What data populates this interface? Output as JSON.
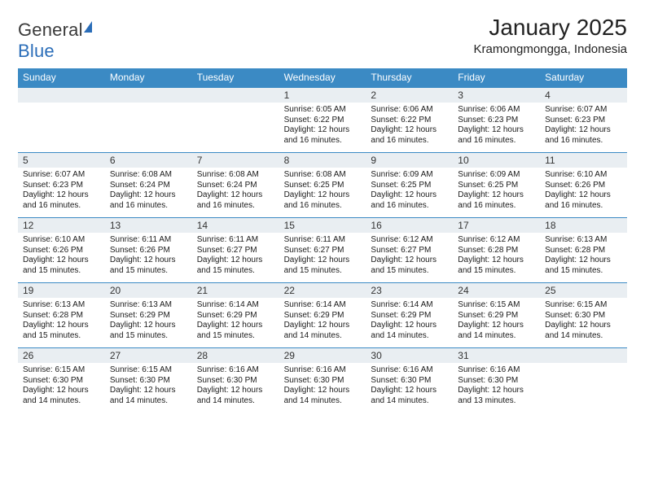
{
  "logo": {
    "text1": "General",
    "text2": "Blue"
  },
  "header": {
    "title": "January 2025",
    "location": "Kramongmongga, Indonesia"
  },
  "styling": {
    "header_bg": "#3b8ac4",
    "header_text": "#ffffff",
    "daynum_bg": "#e9eef2",
    "border_color": "#3b8ac4",
    "body_bg": "#ffffff",
    "body_text": "#1a1a1a",
    "logo_accent": "#2a6db8",
    "month_title_fontsize": 28,
    "weekday_fontsize": 12,
    "daynum_fontsize": 12,
    "detail_fontsize": 10
  },
  "weekdays": [
    "Sunday",
    "Monday",
    "Tuesday",
    "Wednesday",
    "Thursday",
    "Friday",
    "Saturday"
  ],
  "weeks": [
    [
      null,
      null,
      null,
      {
        "num": "1",
        "sunrise": "6:05 AM",
        "sunset": "6:22 PM",
        "daylight": "12 hours and 16 minutes."
      },
      {
        "num": "2",
        "sunrise": "6:06 AM",
        "sunset": "6:22 PM",
        "daylight": "12 hours and 16 minutes."
      },
      {
        "num": "3",
        "sunrise": "6:06 AM",
        "sunset": "6:23 PM",
        "daylight": "12 hours and 16 minutes."
      },
      {
        "num": "4",
        "sunrise": "6:07 AM",
        "sunset": "6:23 PM",
        "daylight": "12 hours and 16 minutes."
      }
    ],
    [
      {
        "num": "5",
        "sunrise": "6:07 AM",
        "sunset": "6:23 PM",
        "daylight": "12 hours and 16 minutes."
      },
      {
        "num": "6",
        "sunrise": "6:08 AM",
        "sunset": "6:24 PM",
        "daylight": "12 hours and 16 minutes."
      },
      {
        "num": "7",
        "sunrise": "6:08 AM",
        "sunset": "6:24 PM",
        "daylight": "12 hours and 16 minutes."
      },
      {
        "num": "8",
        "sunrise": "6:08 AM",
        "sunset": "6:25 PM",
        "daylight": "12 hours and 16 minutes."
      },
      {
        "num": "9",
        "sunrise": "6:09 AM",
        "sunset": "6:25 PM",
        "daylight": "12 hours and 16 minutes."
      },
      {
        "num": "10",
        "sunrise": "6:09 AM",
        "sunset": "6:25 PM",
        "daylight": "12 hours and 16 minutes."
      },
      {
        "num": "11",
        "sunrise": "6:10 AM",
        "sunset": "6:26 PM",
        "daylight": "12 hours and 16 minutes."
      }
    ],
    [
      {
        "num": "12",
        "sunrise": "6:10 AM",
        "sunset": "6:26 PM",
        "daylight": "12 hours and 15 minutes."
      },
      {
        "num": "13",
        "sunrise": "6:11 AM",
        "sunset": "6:26 PM",
        "daylight": "12 hours and 15 minutes."
      },
      {
        "num": "14",
        "sunrise": "6:11 AM",
        "sunset": "6:27 PM",
        "daylight": "12 hours and 15 minutes."
      },
      {
        "num": "15",
        "sunrise": "6:11 AM",
        "sunset": "6:27 PM",
        "daylight": "12 hours and 15 minutes."
      },
      {
        "num": "16",
        "sunrise": "6:12 AM",
        "sunset": "6:27 PM",
        "daylight": "12 hours and 15 minutes."
      },
      {
        "num": "17",
        "sunrise": "6:12 AM",
        "sunset": "6:28 PM",
        "daylight": "12 hours and 15 minutes."
      },
      {
        "num": "18",
        "sunrise": "6:13 AM",
        "sunset": "6:28 PM",
        "daylight": "12 hours and 15 minutes."
      }
    ],
    [
      {
        "num": "19",
        "sunrise": "6:13 AM",
        "sunset": "6:28 PM",
        "daylight": "12 hours and 15 minutes."
      },
      {
        "num": "20",
        "sunrise": "6:13 AM",
        "sunset": "6:29 PM",
        "daylight": "12 hours and 15 minutes."
      },
      {
        "num": "21",
        "sunrise": "6:14 AM",
        "sunset": "6:29 PM",
        "daylight": "12 hours and 15 minutes."
      },
      {
        "num": "22",
        "sunrise": "6:14 AM",
        "sunset": "6:29 PM",
        "daylight": "12 hours and 14 minutes."
      },
      {
        "num": "23",
        "sunrise": "6:14 AM",
        "sunset": "6:29 PM",
        "daylight": "12 hours and 14 minutes."
      },
      {
        "num": "24",
        "sunrise": "6:15 AM",
        "sunset": "6:29 PM",
        "daylight": "12 hours and 14 minutes."
      },
      {
        "num": "25",
        "sunrise": "6:15 AM",
        "sunset": "6:30 PM",
        "daylight": "12 hours and 14 minutes."
      }
    ],
    [
      {
        "num": "26",
        "sunrise": "6:15 AM",
        "sunset": "6:30 PM",
        "daylight": "12 hours and 14 minutes."
      },
      {
        "num": "27",
        "sunrise": "6:15 AM",
        "sunset": "6:30 PM",
        "daylight": "12 hours and 14 minutes."
      },
      {
        "num": "28",
        "sunrise": "6:16 AM",
        "sunset": "6:30 PM",
        "daylight": "12 hours and 14 minutes."
      },
      {
        "num": "29",
        "sunrise": "6:16 AM",
        "sunset": "6:30 PM",
        "daylight": "12 hours and 14 minutes."
      },
      {
        "num": "30",
        "sunrise": "6:16 AM",
        "sunset": "6:30 PM",
        "daylight": "12 hours and 14 minutes."
      },
      {
        "num": "31",
        "sunrise": "6:16 AM",
        "sunset": "6:30 PM",
        "daylight": "12 hours and 13 minutes."
      },
      null
    ]
  ],
  "labels": {
    "sunrise_prefix": "Sunrise: ",
    "sunset_prefix": "Sunset: ",
    "daylight_prefix": "Daylight: "
  }
}
